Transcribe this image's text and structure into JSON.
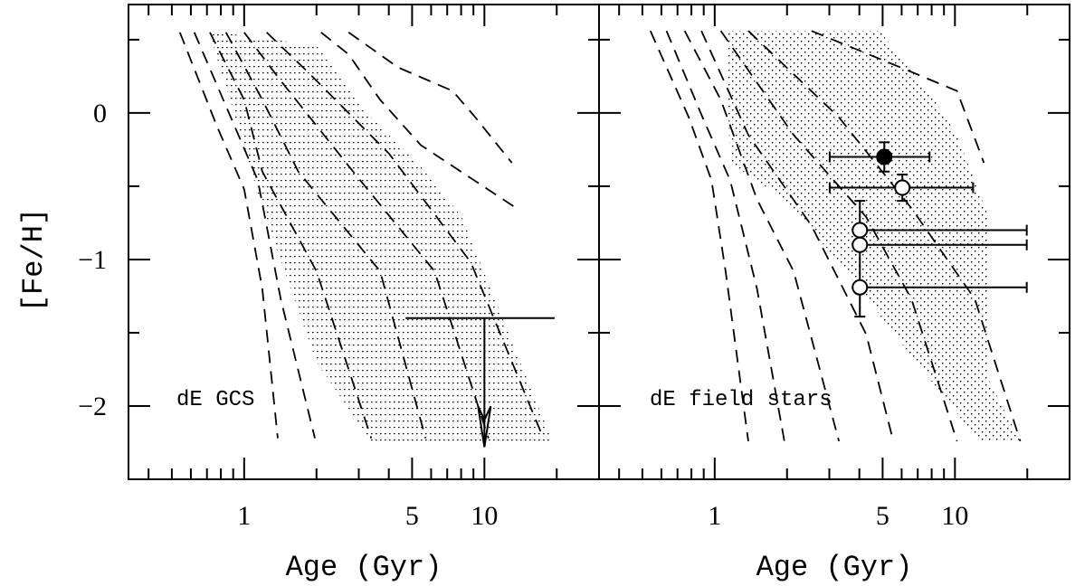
{
  "chart_data": [
    {
      "type": "line",
      "xlabel": "Age (Gyr)",
      "ylabel": "[Fe/H]",
      "log_x": true,
      "xlim": [
        0.33,
        30
      ],
      "ylim": [
        -2.5,
        0.74
      ],
      "xticks": [
        1,
        5,
        10
      ],
      "xminorticks": [
        0.4,
        0.5,
        0.6,
        0.7,
        0.8,
        0.9,
        2,
        3,
        4,
        6,
        7,
        8,
        9,
        20
      ],
      "yticks": [
        0,
        {
          "value": -1,
          "label": "−1"
        },
        {
          "value": -2,
          "label": "−2"
        }
      ],
      "yminorticks": [
        0.5,
        -0.5,
        -1.5
      ],
      "show_ytick_labels": true,
      "line_style": "dashed",
      "color": "#000000",
      "series": [
        {
          "x": [
            0.54,
            0.77,
            1.0,
            1.19,
            1.38
          ],
          "values": [
            0.55,
            -0.09,
            -0.52,
            -1.2,
            -2.22
          ]
        },
        {
          "x": [
            0.62,
            0.88,
            1.14,
            1.42,
            1.97
          ],
          "values": [
            0.55,
            -0.03,
            -0.46,
            -1.27,
            -2.22
          ]
        },
        {
          "x": [
            0.72,
            1.0,
            1.19,
            2.0,
            3.38
          ],
          "values": [
            0.55,
            0.09,
            -0.4,
            -1.08,
            -2.22
          ]
        },
        {
          "x": [
            0.84,
            1.19,
            1.68,
            3.68,
            5.69
          ],
          "values": [
            0.55,
            0.09,
            -0.4,
            -1.08,
            -2.22
          ]
        },
        {
          "x": [
            1.0,
            1.42,
            2.84,
            6.2,
            10.4
          ],
          "values": [
            0.55,
            0.22,
            -0.4,
            -1.08,
            -2.22
          ]
        },
        {
          "x": [
            1.24,
            1.84,
            4.02,
            8.78,
            17.6
          ],
          "values": [
            0.55,
            0.28,
            -0.28,
            -1.02,
            -2.22
          ]
        },
        {
          "x": [
            2.09,
            2.72,
            3.68,
            5.44,
            13.6
          ],
          "values": [
            0.55,
            0.4,
            0.09,
            -0.22,
            -0.65
          ]
        },
        {
          "x": [
            2.72,
            4.38,
            7.38,
            9.17,
            13.0
          ],
          "values": [
            0.55,
            0.31,
            0.15,
            -0.03,
            -0.34
          ]
        }
      ],
      "shaded_region": {
        "pattern": "lines",
        "x": [
          0.71,
          2.0,
          3.38,
          5.69,
          8.05,
          13.6,
          19.2,
          3.38,
          2.0,
          1.19,
          0.92
        ],
        "y": [
          0.56,
          0.46,
          -0.03,
          -0.4,
          -0.71,
          -1.64,
          -2.24,
          -2.24,
          -1.7,
          -0.65,
          -0.03
        ]
      },
      "upper_limits": [
        {
          "x": 10,
          "y": -1.4,
          "xlo": 4.7,
          "xhi": 19.6,
          "arrow_to": -2.28
        }
      ],
      "annotation": "dE GCS"
    },
    {
      "type": "line",
      "xlabel": "Age (Gyr)",
      "log_x": true,
      "xlim": [
        0.33,
        30
      ],
      "ylim": [
        -2.5,
        0.74
      ],
      "xticks": [
        1,
        5,
        10
      ],
      "xminorticks": [
        0.4,
        0.5,
        0.6,
        0.7,
        0.8,
        0.9,
        2,
        3,
        4,
        6,
        7,
        8,
        9,
        20
      ],
      "yticks": [
        0,
        -1,
        -2
      ],
      "yminorticks": [
        0.5,
        -0.5,
        -1.5
      ],
      "show_ytick_labels": false,
      "line_style": "dashed",
      "color": "#000000",
      "series": [
        {
          "x": [
            0.54,
            0.78,
            0.97,
            1.11,
            1.38
          ],
          "values": [
            0.56,
            -0.03,
            -0.46,
            -1.08,
            -2.24
          ]
        },
        {
          "x": [
            0.63,
            0.89,
            1.16,
            1.5,
            1.95
          ],
          "values": [
            0.56,
            -0.03,
            -0.46,
            -1.2,
            -2.24
          ]
        },
        {
          "x": [
            0.75,
            1.06,
            1.5,
            2.13,
            3.29
          ],
          "values": [
            0.56,
            0.09,
            -0.59,
            -1.08,
            -2.24
          ]
        },
        {
          "x": [
            0.88,
            1.38,
            2.53,
            4.27,
            5.54
          ],
          "values": [
            0.56,
            -0.15,
            -0.77,
            -1.51,
            -2.24
          ]
        },
        {
          "x": [
            1.06,
            2.13,
            4.27,
            6.59,
            10.2
          ],
          "values": [
            0.56,
            -0.15,
            -0.71,
            -1.27,
            -2.24
          ]
        },
        {
          "x": [
            1.38,
            3.29,
            6.59,
            12.1,
            18.7
          ],
          "values": [
            0.56,
            -0.03,
            -0.65,
            -1.27,
            -2.24
          ]
        },
        {
          "x": [
            2.53,
            6.59,
            10.2,
            13.2
          ],
          "values": [
            0.56,
            0.28,
            0.15,
            -0.34
          ]
        }
      ],
      "shaded_region": {
        "pattern": "dots",
        "x": [
          1.11,
          4.86,
          8.19,
          10.2,
          13.8,
          13.8,
          18.7,
          12.6,
          6.04,
          3.29,
          1.95,
          1.16
        ],
        "y": [
          0.56,
          0.56,
          0.09,
          -0.15,
          -0.71,
          -1.82,
          -2.24,
          -2.24,
          -1.58,
          -1.02,
          -0.59,
          -0.34
        ]
      },
      "points": [
        {
          "x": 5.08,
          "y": -0.3,
          "xlo": 3.01,
          "xhi": 7.84,
          "ylo": -0.4,
          "yhi": -0.2,
          "filled": true
        },
        {
          "x": 6.04,
          "y": -0.51,
          "xlo": 3.01,
          "xhi": 11.9,
          "ylo": -0.6,
          "yhi": -0.42,
          "filled": false
        },
        {
          "x": 4.02,
          "y": -0.8,
          "xlo": 4.02,
          "xhi": 19.9,
          "ylo": -1.39,
          "yhi": -0.6,
          "filled": false
        },
        {
          "x": 4.02,
          "y": -0.9,
          "xlo": 4.02,
          "xhi": 19.9,
          "filled": false
        },
        {
          "x": 4.02,
          "y": -1.19,
          "xlo": 4.02,
          "xhi": 19.9,
          "filled": false
        }
      ],
      "annotation": "dE field stars"
    }
  ]
}
